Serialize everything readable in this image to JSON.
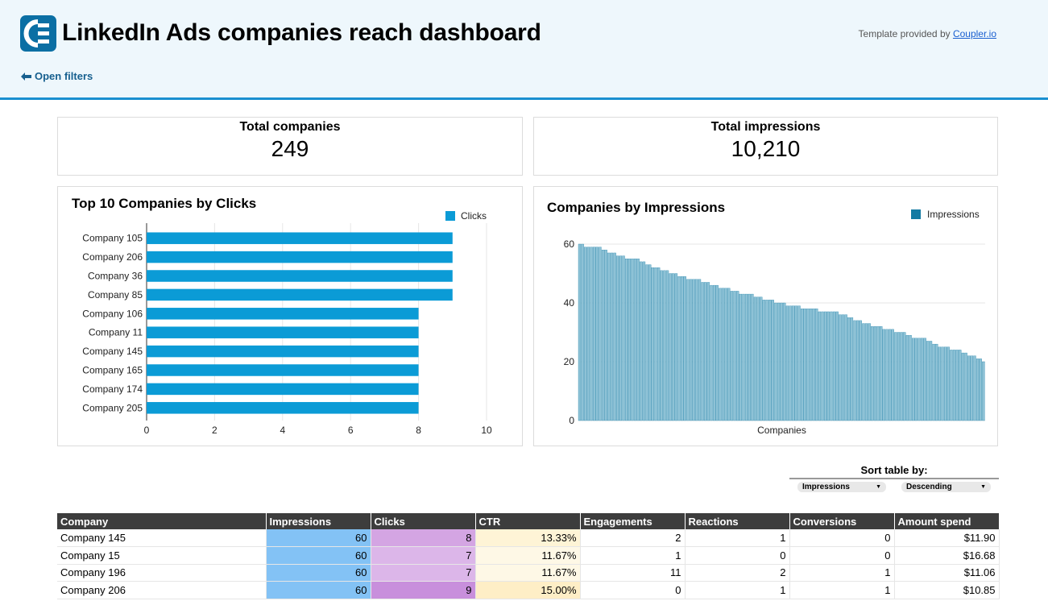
{
  "header": {
    "title": "LinkedIn Ads companies reach dashboard",
    "provided_text": "Template provided by ",
    "provided_link": "Coupler.io",
    "open_filters": "Open filters",
    "logo_icon": "coupler-logo-icon",
    "arrow_icon": "arrow-left-icon"
  },
  "kpis": {
    "companies_label": "Total companies",
    "companies_value": "249",
    "impressions_label": "Total impressions",
    "impressions_value": "10,210"
  },
  "chart_data": [
    {
      "type": "bar",
      "orientation": "horizontal",
      "title": "Top 10 Companies by Clicks",
      "categories": [
        "Company 105",
        "Company 206",
        "Company 36",
        "Company 85",
        "Company 106",
        "Company 11",
        "Company 145",
        "Company 165",
        "Company 174",
        "Company 205"
      ],
      "series": [
        {
          "name": "Clicks",
          "values": [
            9,
            9,
            9,
            9,
            8,
            8,
            8,
            8,
            8,
            8
          ]
        }
      ],
      "xlim": [
        0,
        10
      ],
      "xticks": [
        0,
        2,
        4,
        6,
        8,
        10
      ],
      "legend": "top-right",
      "color": "#0b9bd6"
    },
    {
      "type": "bar",
      "title": "Companies by Impressions",
      "xlabel": "Companies",
      "series": [
        {
          "name": "Impressions",
          "values": [
            60,
            60,
            59,
            59,
            59,
            59,
            59,
            59,
            58,
            58,
            57,
            57,
            57,
            56,
            56,
            56,
            55,
            55,
            55,
            55,
            55,
            54,
            54,
            53,
            53,
            52,
            52,
            52,
            51,
            51,
            51,
            50,
            50,
            50,
            49,
            49,
            49,
            48,
            48,
            48,
            48,
            48,
            47,
            47,
            47,
            46,
            46,
            46,
            45,
            45,
            45,
            45,
            44,
            44,
            44,
            43,
            43,
            43,
            43,
            43,
            42,
            42,
            42,
            41,
            41,
            41,
            41,
            40,
            40,
            40,
            40,
            39,
            39,
            39,
            39,
            39,
            38,
            38,
            38,
            38,
            38,
            38,
            37,
            37,
            37,
            37,
            37,
            37,
            37,
            36,
            36,
            36,
            35,
            35,
            34,
            34,
            34,
            33,
            33,
            33,
            32,
            32,
            32,
            32,
            31,
            31,
            31,
            31,
            30,
            30,
            30,
            30,
            29,
            29,
            28,
            28,
            28,
            28,
            28,
            27,
            27,
            26,
            26,
            25,
            25,
            25,
            25,
            24,
            24,
            24,
            24,
            23,
            23,
            22,
            22,
            22,
            21,
            21,
            20
          ]
        }
      ],
      "ylim": [
        0,
        60
      ],
      "yticks": [
        0,
        20,
        40,
        60
      ],
      "legend": "top-right",
      "color": "#137aa3",
      "bar_color": "#8ec2d6"
    }
  ],
  "sort": {
    "title": "Sort table by:",
    "field": "Impressions",
    "order": "Descending"
  },
  "table": {
    "columns": [
      "Company",
      "Impressions",
      "Clicks",
      "CTR",
      "Engagements",
      "Reactions",
      "Conversions",
      "Amount spend"
    ],
    "rows": [
      [
        "Company 145",
        "60",
        "8",
        "13.33%",
        "2",
        "1",
        "0",
        "$11.90"
      ],
      [
        "Company 15",
        "60",
        "7",
        "11.67%",
        "1",
        "0",
        "0",
        "$16.68"
      ],
      [
        "Company 196",
        "60",
        "7",
        "11.67%",
        "11",
        "2",
        "1",
        "$11.06"
      ],
      [
        "Company 206",
        "60",
        "9",
        "15.00%",
        "0",
        "1",
        "1",
        "$10.85"
      ]
    ],
    "impressions_color": "#83c2f5",
    "clicks_colors": [
      "#d4a5e3",
      "#dcb6e9",
      "#dcb6e9",
      "#c88fdc"
    ],
    "ctr_colors": [
      "#fef4d6",
      "#fef8e6",
      "#fef8e6",
      "#feeec6"
    ]
  }
}
